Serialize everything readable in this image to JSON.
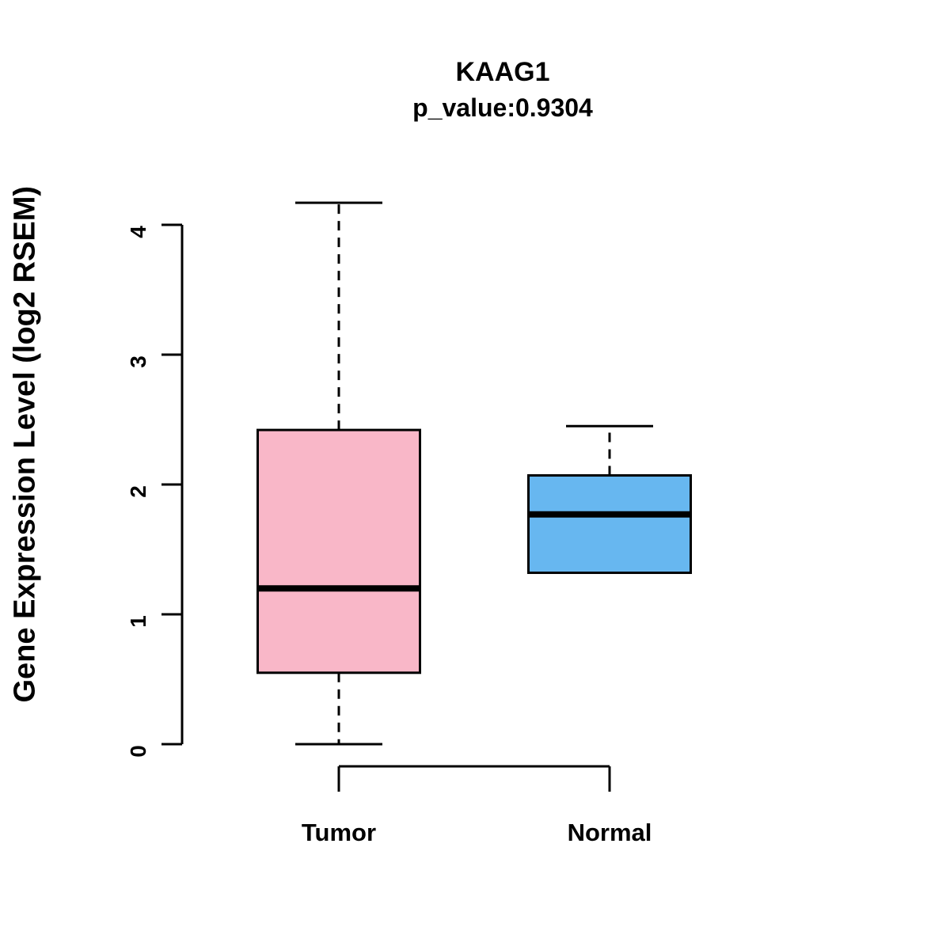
{
  "chart_data": {
    "type": "boxplot",
    "title": "KAAG1",
    "subtitle": "p_value:0.9304",
    "ylabel": "Gene Expression Level (log2 RSEM)",
    "xlabel": "",
    "ylim": [
      0,
      4.2
    ],
    "yticks": [
      0,
      1,
      2,
      3,
      4
    ],
    "grid": false,
    "legend": "none",
    "groups": [
      {
        "label": "Tumor",
        "color": "#F9B7C8",
        "whisker_low": 0.0,
        "q1": 0.55,
        "median": 1.2,
        "q3": 2.42,
        "whisker_high": 4.17
      },
      {
        "label": "Normal",
        "color": "#67B7F0",
        "whisker_low": 1.32,
        "q1": 1.32,
        "median": 1.77,
        "q3": 2.07,
        "whisker_high": 2.45
      }
    ],
    "colors": {
      "axis": "#000000",
      "box_stroke": "#000000",
      "median": "#000000",
      "background": "#ffffff"
    }
  }
}
